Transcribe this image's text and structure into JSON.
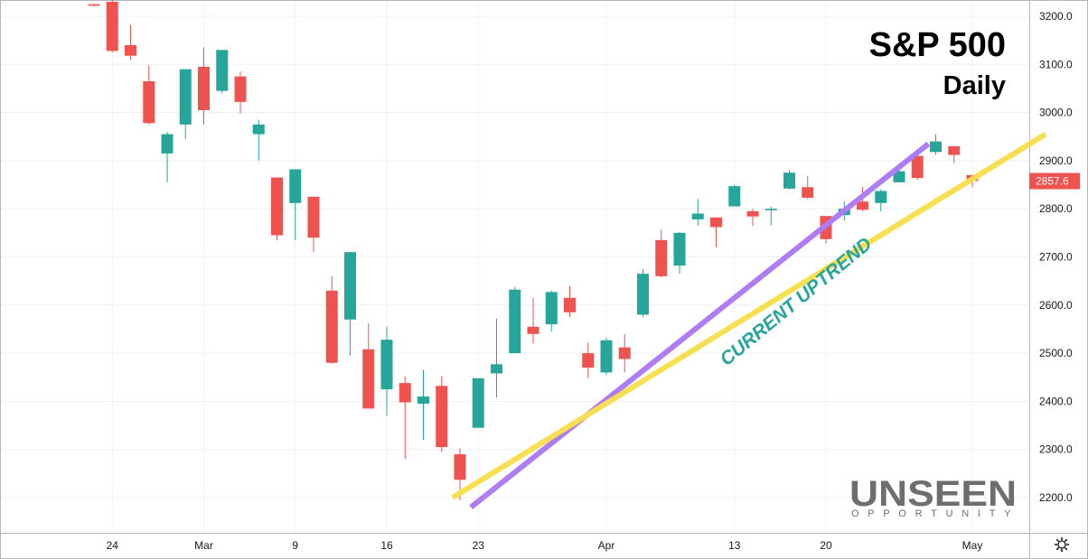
{
  "chart_data": {
    "type": "candlestick",
    "title": "S&P 500",
    "subtitle": "Daily",
    "y_ticks": [
      "3200.0",
      "3100.0",
      "3000.0",
      "2900.0",
      "2800.0",
      "2700.0",
      "2600.0",
      "2500.0",
      "2400.0",
      "2300.0",
      "2200.0"
    ],
    "x_ticks": [
      "24",
      "Mar",
      "9",
      "16",
      "23",
      "Apr",
      "13",
      "20",
      "May"
    ],
    "last_price_label": "2857.6",
    "annotation": "CURRENT UPTREND",
    "ylim": [
      2135,
      3230
    ],
    "grid": true,
    "colors": {
      "up": "#26a69a",
      "down": "#ef5350",
      "trend_purple": "#b07cf3",
      "trend_yellow": "#f7df4f",
      "grid": "#eef0f3",
      "axis_line": "#b2b5be",
      "annotation": "#26a69a"
    },
    "candles": [
      {
        "date": "Feb 21",
        "open": 3225,
        "high": 3225,
        "low": 3220,
        "close": 3222
      },
      {
        "date": "Feb 24",
        "open": 3230,
        "high": 3259,
        "low": 3125,
        "close": 3128
      },
      {
        "date": "Feb 25",
        "open": 3140,
        "high": 3182,
        "low": 3110,
        "close": 3118
      },
      {
        "date": "Feb 26",
        "open": 3065,
        "high": 3098,
        "low": 2975,
        "close": 2978
      },
      {
        "date": "Feb 27",
        "open": 2915,
        "high": 2960,
        "low": 2855,
        "close": 2955
      },
      {
        "date": "Mar 2",
        "open": 2975,
        "high": 3090,
        "low": 2945,
        "close": 3090
      },
      {
        "date": "Mar 3",
        "open": 3095,
        "high": 3135,
        "low": 2975,
        "close": 3005
      },
      {
        "date": "Mar 4",
        "open": 3045,
        "high": 3130,
        "low": 3040,
        "close": 3130
      },
      {
        "date": "Mar 5",
        "open": 3075,
        "high": 3085,
        "low": 2998,
        "close": 3022
      },
      {
        "date": "Mar 6",
        "open": 2955,
        "high": 2985,
        "low": 2900,
        "close": 2975
      },
      {
        "date": "Mar 9",
        "open": 2865,
        "high": 2865,
        "low": 2735,
        "close": 2745
      },
      {
        "date": "Mar 10",
        "open": 2812,
        "high": 2882,
        "low": 2735,
        "close": 2882
      },
      {
        "date": "Mar 11",
        "open": 2825,
        "high": 2825,
        "low": 2710,
        "close": 2740
      },
      {
        "date": "Mar 12",
        "open": 2630,
        "high": 2660,
        "low": 2478,
        "close": 2480
      },
      {
        "date": "Mar 13",
        "open": 2570,
        "high": 2710,
        "low": 2495,
        "close": 2710
      },
      {
        "date": "Mar 16",
        "open": 2508,
        "high": 2562,
        "low": 2385,
        "close": 2385
      },
      {
        "date": "Mar 17",
        "open": 2425,
        "high": 2555,
        "low": 2370,
        "close": 2528
      },
      {
        "date": "Mar 18",
        "open": 2438,
        "high": 2452,
        "low": 2280,
        "close": 2398
      },
      {
        "date": "Mar 19",
        "open": 2395,
        "high": 2465,
        "low": 2320,
        "close": 2410
      },
      {
        "date": "Mar 20",
        "open": 2432,
        "high": 2452,
        "low": 2295,
        "close": 2305
      },
      {
        "date": "Mar 23",
        "open": 2290,
        "high": 2302,
        "low": 2195,
        "close": 2237
      },
      {
        "date": "Mar 24",
        "open": 2345,
        "high": 2448,
        "low": 2345,
        "close": 2448
      },
      {
        "date": "Mar 25",
        "open": 2458,
        "high": 2572,
        "low": 2408,
        "close": 2477
      },
      {
        "date": "Mar 26",
        "open": 2500,
        "high": 2638,
        "low": 2500,
        "close": 2632
      },
      {
        "date": "Mar 27",
        "open": 2555,
        "high": 2615,
        "low": 2520,
        "close": 2540
      },
      {
        "date": "Mar 30",
        "open": 2560,
        "high": 2630,
        "low": 2545,
        "close": 2627
      },
      {
        "date": "Mar 31",
        "open": 2615,
        "high": 2640,
        "low": 2575,
        "close": 2585
      },
      {
        "date": "Apr 1",
        "open": 2500,
        "high": 2522,
        "low": 2448,
        "close": 2470
      },
      {
        "date": "Apr 2",
        "open": 2460,
        "high": 2532,
        "low": 2455,
        "close": 2527
      },
      {
        "date": "Apr 3",
        "open": 2512,
        "high": 2540,
        "low": 2460,
        "close": 2488
      },
      {
        "date": "Apr 6",
        "open": 2580,
        "high": 2675,
        "low": 2575,
        "close": 2665
      },
      {
        "date": "Apr 7",
        "open": 2735,
        "high": 2757,
        "low": 2658,
        "close": 2660
      },
      {
        "date": "Apr 8",
        "open": 2682,
        "high": 2752,
        "low": 2665,
        "close": 2750
      },
      {
        "date": "Apr 9",
        "open": 2778,
        "high": 2820,
        "low": 2765,
        "close": 2790
      },
      {
        "date": "Apr 13",
        "open": 2782,
        "high": 2782,
        "low": 2720,
        "close": 2762
      },
      {
        "date": "Apr 14",
        "open": 2805,
        "high": 2850,
        "low": 2805,
        "close": 2847
      },
      {
        "date": "Apr 15",
        "open": 2795,
        "high": 2800,
        "low": 2765,
        "close": 2784
      },
      {
        "date": "Apr 16",
        "open": 2797,
        "high": 2805,
        "low": 2765,
        "close": 2800
      },
      {
        "date": "Apr 17",
        "open": 2842,
        "high": 2880,
        "low": 2840,
        "close": 2875
      },
      {
        "date": "Apr 20",
        "open": 2845,
        "high": 2868,
        "low": 2820,
        "close": 2823
      },
      {
        "date": "Apr 21",
        "open": 2785,
        "high": 2785,
        "low": 2728,
        "close": 2737
      },
      {
        "date": "Apr 22",
        "open": 2787,
        "high": 2815,
        "low": 2775,
        "close": 2800
      },
      {
        "date": "Apr 23",
        "open": 2815,
        "high": 2845,
        "low": 2795,
        "close": 2798
      },
      {
        "date": "Apr 24",
        "open": 2812,
        "high": 2840,
        "low": 2795,
        "close": 2837
      },
      {
        "date": "Apr 27",
        "open": 2855,
        "high": 2888,
        "low": 2855,
        "close": 2878
      },
      {
        "date": "Apr 28",
        "open": 2910,
        "high": 2922,
        "low": 2860,
        "close": 2864
      },
      {
        "date": "Apr 29",
        "open": 2918,
        "high": 2955,
        "low": 2912,
        "close": 2940
      },
      {
        "date": "Apr 30",
        "open": 2930,
        "high": 2930,
        "low": 2895,
        "close": 2912
      },
      {
        "date": "May 1",
        "open": 2870,
        "high": 2870,
        "low": 2845,
        "close": 2858
      }
    ]
  },
  "logo": {
    "main": "UNSEEN",
    "sub": "OPPORTUNITY"
  },
  "icons": {
    "settings": "settings-gear-icon"
  }
}
